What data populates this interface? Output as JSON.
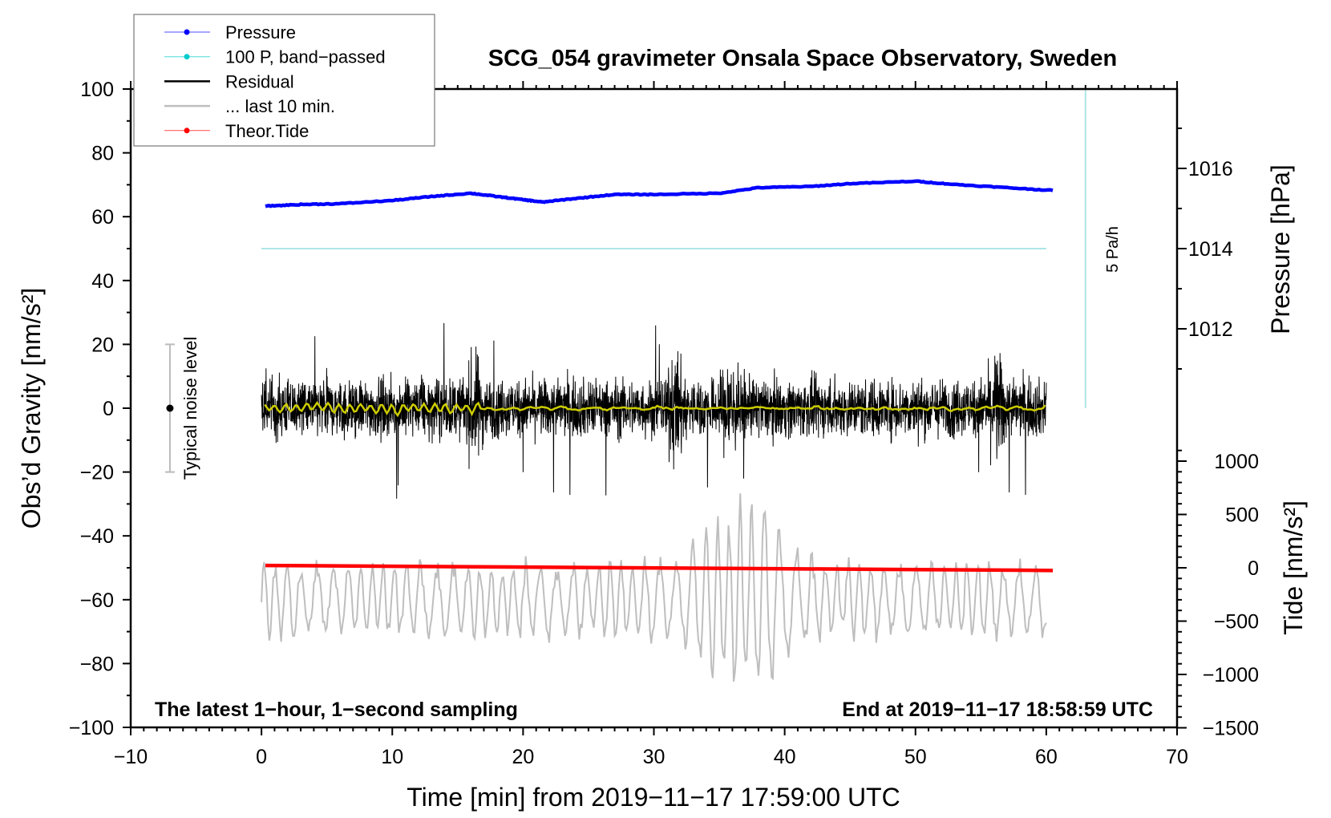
{
  "chart_data": {
    "type": "line",
    "title": "SCG_054 gravimeter Onsala Space Observatory, Sweden",
    "xlabel": "Time [min] from 2019−11−17 17:59:00 UTC",
    "ylabel": "Obs’d Gravity [nm/s²]",
    "ylabel_right_top": "Pressure [hPa]",
    "ylabel_right_bottom": "Tide [nm/s²]",
    "xlim": [
      -10,
      70
    ],
    "ylim": [
      -100,
      100
    ],
    "xticks": [
      "−10",
      "0",
      "10",
      "20",
      "30",
      "40",
      "50",
      "60",
      "70"
    ],
    "xtick_values": [
      -10,
      0,
      10,
      20,
      30,
      40,
      50,
      60,
      70
    ],
    "yticks": [
      "100",
      "80",
      "60",
      "40",
      "20",
      "0",
      "−20",
      "−40",
      "−60",
      "−80",
      "−100"
    ],
    "ytick_values": [
      100,
      80,
      60,
      40,
      20,
      0,
      -20,
      -40,
      -60,
      -80,
      -100
    ],
    "pressure_ticks": [
      "1016",
      "1014",
      "1012"
    ],
    "pressure_tick_values": [
      1016,
      1014,
      1012
    ],
    "tide_ticks": [
      "1000",
      "500",
      "0",
      "−500",
      "−1000",
      "−1500"
    ],
    "tide_tick_values": [
      1000,
      500,
      0,
      -500,
      -1000,
      -1500
    ],
    "legend": {
      "position": "top-left",
      "entries": [
        {
          "label": "Pressure",
          "color": "#0000ff",
          "marker": true
        },
        {
          "label": "100 P, band−passed",
          "color": "#00cccc",
          "marker": true
        },
        {
          "label": "Residual",
          "color": "#000000",
          "marker": false
        },
        {
          "label": "... last 10 min.",
          "color": "#bebebe",
          "marker": false
        },
        {
          "label": "Theor.Tide",
          "color": "#ff0000",
          "marker": true
        }
      ]
    },
    "series": [
      {
        "name": "Pressure",
        "axis": "pressure_hPa",
        "color": "#0000ff",
        "points": [
          [
            0.3,
            1015.06
          ],
          [
            3,
            1015.1
          ],
          [
            6,
            1015.12
          ],
          [
            10,
            1015.2
          ],
          [
            13,
            1015.3
          ],
          [
            16,
            1015.38
          ],
          [
            18,
            1015.3
          ],
          [
            20,
            1015.22
          ],
          [
            21.5,
            1015.16
          ],
          [
            24,
            1015.25
          ],
          [
            27,
            1015.35
          ],
          [
            30,
            1015.35
          ],
          [
            35,
            1015.38
          ],
          [
            38,
            1015.52
          ],
          [
            42,
            1015.55
          ],
          [
            45,
            1015.62
          ],
          [
            50,
            1015.68
          ],
          [
            53,
            1015.6
          ],
          [
            57,
            1015.52
          ],
          [
            60.5,
            1015.45
          ]
        ]
      },
      {
        "name": "100 P, band−passed",
        "axis": "gravity",
        "color": "#aee6e6",
        "points": [
          [
            0,
            50
          ],
          [
            60,
            50
          ]
        ]
      },
      {
        "name": "Residual",
        "axis": "gravity",
        "color": "#000000",
        "range": [
          0,
          60
        ],
        "amplitude": 8,
        "peaks": [
          [
            16.3,
            37
          ],
          [
            31.7,
            33
          ],
          [
            35.8,
            30
          ],
          [
            56.2,
            35
          ]
        ],
        "min": -35
      },
      {
        "name": "Residual smoothed",
        "axis": "gravity",
        "color": "#cccc00",
        "amplitude": 1
      },
      {
        "name": "... last 10 min.",
        "axis": "gravity",
        "color": "#bebebe",
        "offset": -60,
        "amplitude": 12,
        "max_swing": 37,
        "burst_center": 37
      },
      {
        "name": "Theor.Tide",
        "axis": "tide_nm_s2",
        "color": "#ff0000",
        "points": [
          [
            0.3,
            22
          ],
          [
            60.5,
            -25
          ]
        ]
      }
    ],
    "annotations": {
      "noise_label": "Typical noise level",
      "noise_range": [
        -20,
        20
      ],
      "noise_x": -7,
      "rate_label": "5 Pa/h",
      "rate_bar": {
        "x": 63,
        "from": 0,
        "to": 100
      },
      "bottom_left": "The latest 1−hour, 1−second sampling",
      "bottom_right": "End at 2019−11−17 18:58:59 UTC"
    },
    "grid": false
  }
}
